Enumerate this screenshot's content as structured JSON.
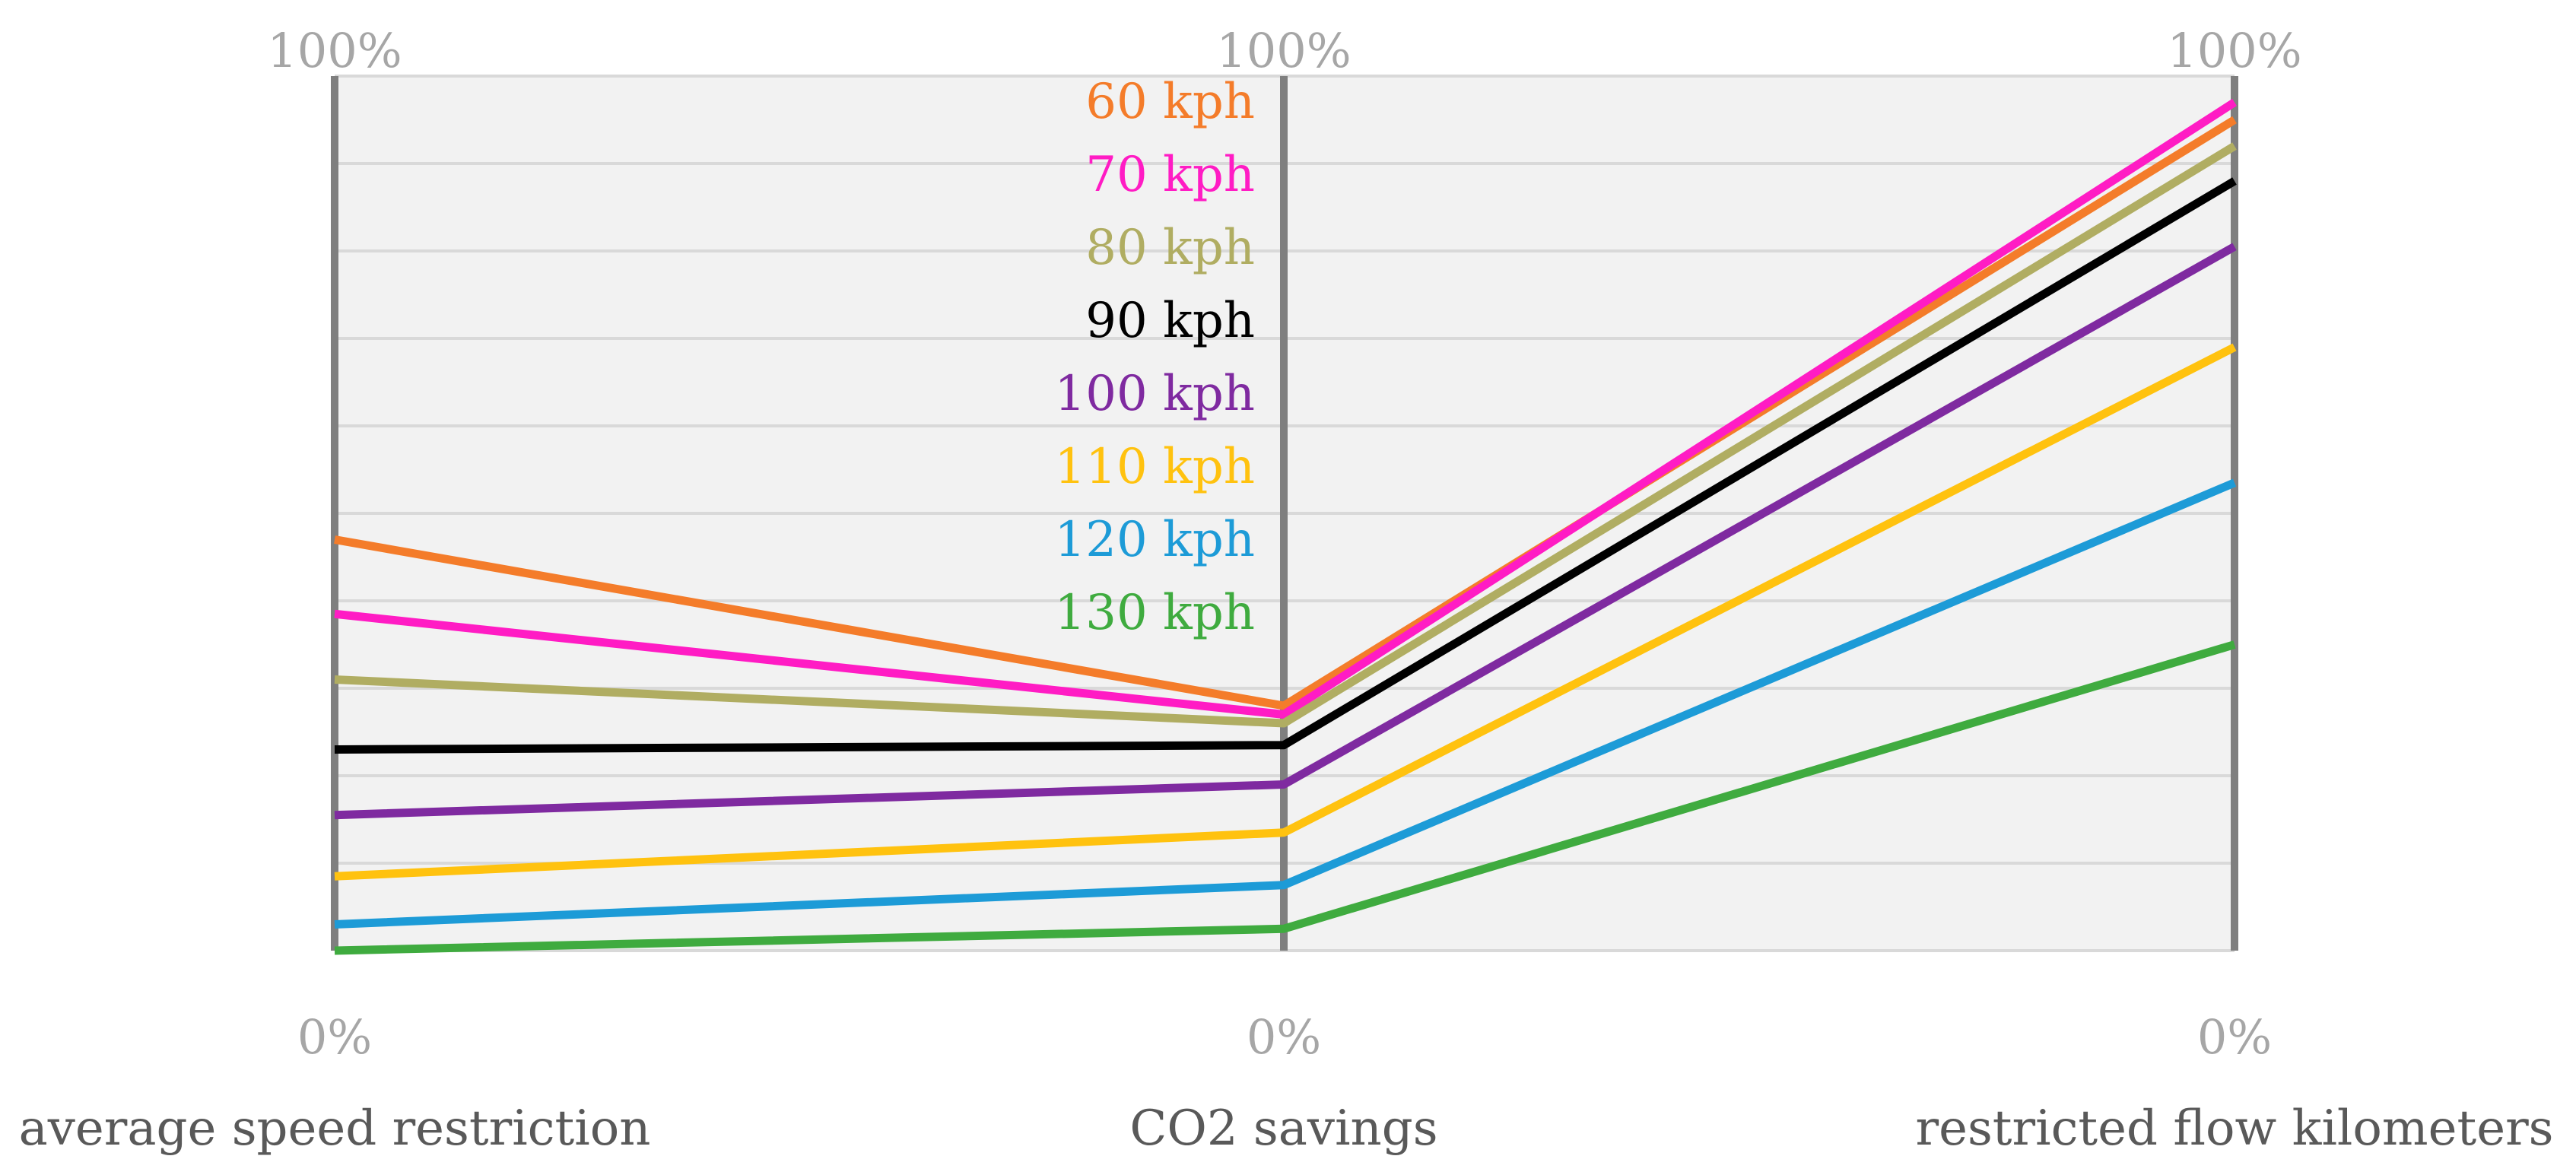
{
  "chart_data": {
    "type": "line",
    "subtype": "parallel-coordinates",
    "axes": [
      {
        "name": "average speed restriction",
        "top_label": "100%",
        "bottom_label": "0%"
      },
      {
        "name": "CO2 savings",
        "top_label": "100%",
        "bottom_label": "0%"
      },
      {
        "name": "restricted flow kilometers",
        "top_label": "100%",
        "bottom_label": "0%"
      }
    ],
    "ylim": [
      0,
      100
    ],
    "grid": true,
    "legend_position": "center, between first and second axis",
    "series": [
      {
        "name": "60 kph",
        "color": "#f47c2a",
        "values": [
          47,
          28,
          95
        ]
      },
      {
        "name": "70 kph",
        "color": "#ff1cc4",
        "values": [
          38.5,
          27,
          97
        ]
      },
      {
        "name": "80 kph",
        "color": "#b0ad62",
        "values": [
          31,
          26,
          92
        ]
      },
      {
        "name": "90 kph",
        "color": "#000000",
        "values": [
          23,
          23.5,
          88
        ]
      },
      {
        "name": "100 kph",
        "color": "#7f2aa0",
        "values": [
          15.5,
          19,
          80.5
        ]
      },
      {
        "name": "110 kph",
        "color": "#ffc20f",
        "values": [
          8.5,
          13.5,
          69
        ]
      },
      {
        "name": "120 kph",
        "color": "#1d9bd7",
        "values": [
          3,
          7.5,
          53.5
        ]
      },
      {
        "name": "130 kph",
        "color": "#3fab3f",
        "values": [
          0,
          2.5,
          35
        ]
      }
    ]
  }
}
